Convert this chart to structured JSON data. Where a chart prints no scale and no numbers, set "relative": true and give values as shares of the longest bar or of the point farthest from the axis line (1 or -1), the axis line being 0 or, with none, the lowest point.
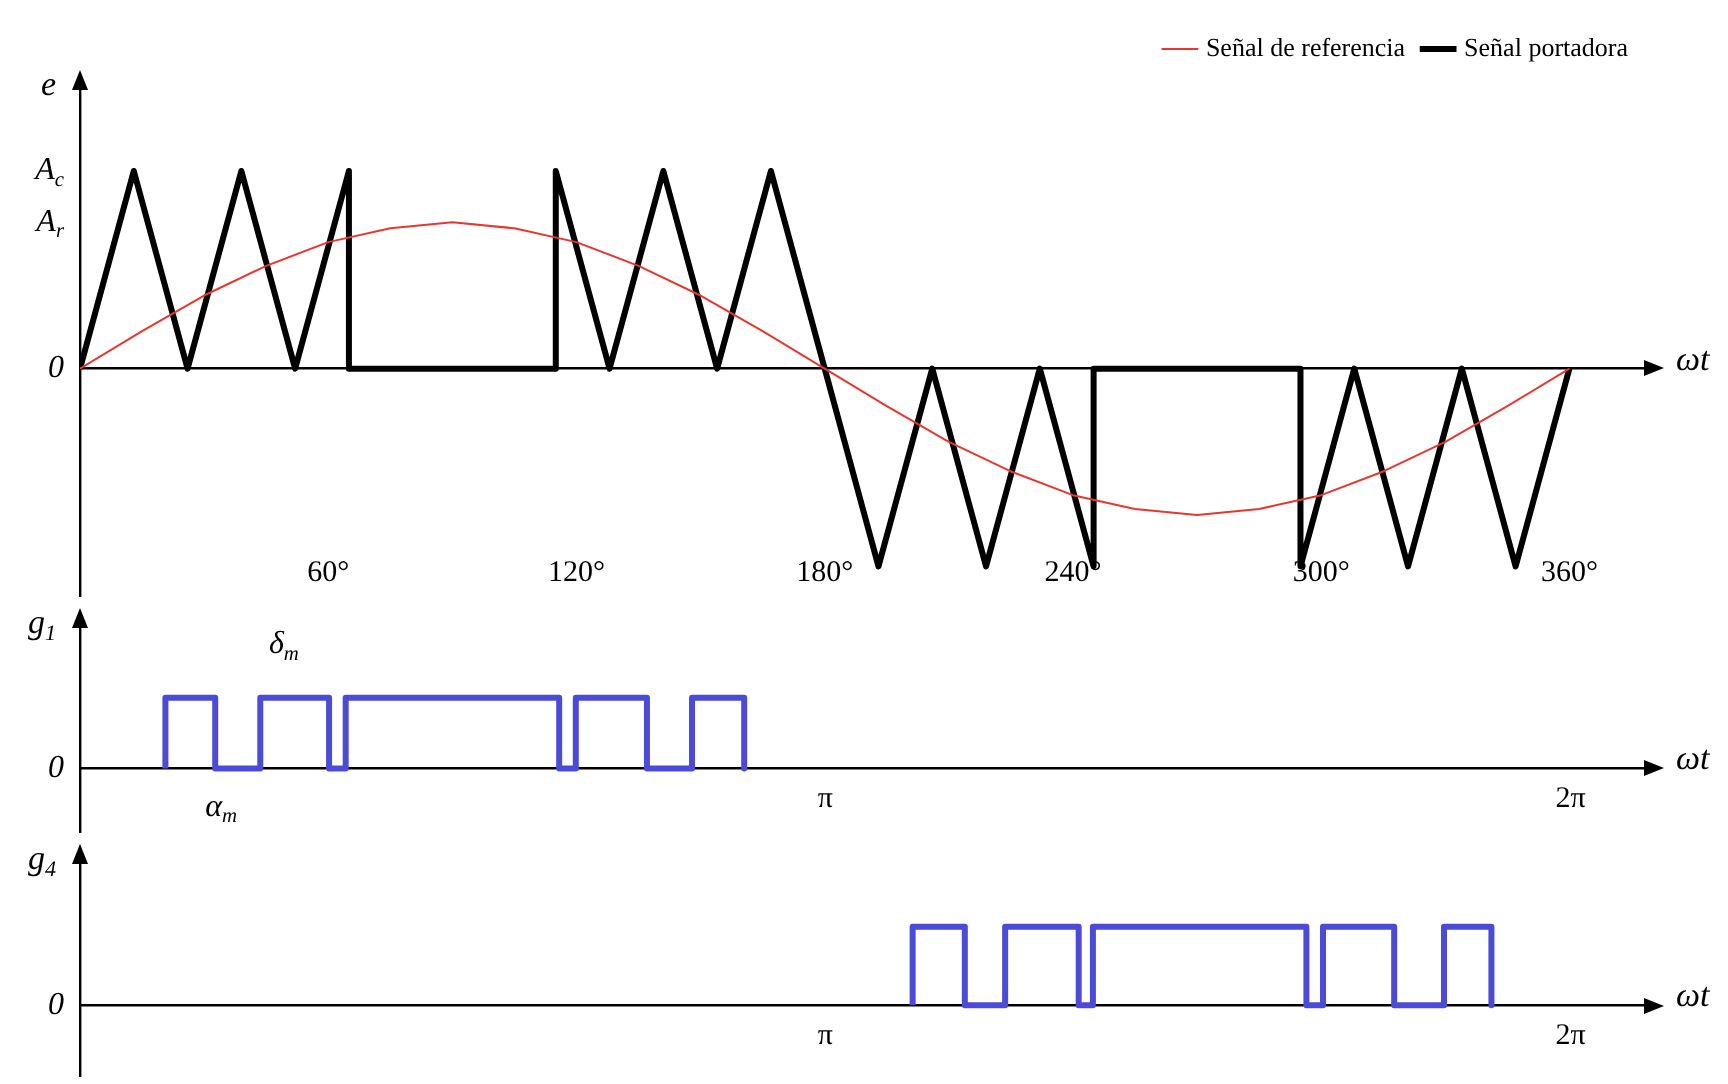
{
  "chart_data": [
    {
      "type": "line",
      "relative": true,
      "ylabel": "e",
      "xlabel": "ωt",
      "marker": "none",
      "legend": "top right",
      "xlim": [
        0,
        379
      ],
      "xticks": [
        {
          "value": 60,
          "label": "60°"
        },
        {
          "value": 120,
          "label": "120°"
        },
        {
          "value": 180,
          "label": "180°"
        },
        {
          "value": 240,
          "label": "240°"
        },
        {
          "value": 300,
          "label": "300°"
        },
        {
          "value": 360,
          "label": "360°"
        }
      ],
      "annotations": [
        "0",
        "A$_{c}$",
        "A$_{r}$"
      ],
      "series": [
        {
          "name": "Señal de referencia",
          "color": "#e8372f",
          "x": [
            0,
            15,
            30,
            45,
            60,
            75,
            90,
            105,
            120,
            135,
            150,
            165,
            180,
            195,
            210,
            225,
            240,
            255,
            270,
            285,
            300,
            315,
            330,
            345,
            360
          ],
          "values": [
            0,
            0.19,
            0.37,
            0.52,
            0.64,
            0.71,
            0.74,
            0.71,
            0.64,
            0.52,
            0.37,
            0.19,
            0,
            -0.19,
            -0.37,
            -0.52,
            -0.64,
            -0.71,
            -0.74,
            -0.71,
            -0.64,
            -0.52,
            -0.37,
            -0.19,
            0
          ]
        },
        {
          "name": "Señal portadora",
          "color": "#000000",
          "x": [
            0,
            13,
            26,
            39,
            52,
            65,
            65,
            115,
            115,
            128,
            141,
            154,
            167,
            180,
            193,
            206,
            219,
            232,
            245,
            245,
            295,
            295,
            308,
            321,
            334,
            347,
            360
          ],
          "values": [
            0,
            1,
            0,
            1,
            0,
            1,
            0,
            0,
            1,
            0,
            1,
            0,
            1,
            0,
            -1,
            0,
            -1,
            0,
            -1,
            0,
            0,
            -1,
            0,
            -1,
            0,
            -1,
            0
          ]
        }
      ]
    },
    {
      "type": "line",
      "relative": true,
      "ylabel": "g$_{1}$",
      "xlabel": "ωt",
      "marker": "none",
      "xlim": [
        0,
        6.61
      ],
      "xticks": [
        {
          "value": 3.1416,
          "label": "π"
        },
        {
          "value": 6.2832,
          "label": "2π"
        }
      ],
      "annotations": [
        "0",
        "α$_{m}$",
        "δ$_{m}$"
      ],
      "series": [
        {
          "color": "#4b4bd8",
          "x": [
            0.36,
            0.36,
            0.57,
            0.57,
            0.76,
            0.76,
            1.05,
            1.05,
            1.12,
            1.12,
            2.02,
            2.02,
            2.09,
            2.09,
            2.39,
            2.39,
            2.58,
            2.58,
            2.8,
            2.8
          ],
          "values": [
            0,
            1,
            1,
            0,
            0,
            1,
            1,
            0,
            0,
            1,
            1,
            0,
            0,
            1,
            1,
            0,
            0,
            1,
            1,
            0
          ]
        }
      ]
    },
    {
      "type": "line",
      "relative": true,
      "ylabel": "g$_{4}$",
      "xlabel": "ωt",
      "marker": "none",
      "xlim": [
        0,
        6.61
      ],
      "xticks": [
        {
          "value": 3.1416,
          "label": "π"
        },
        {
          "value": 6.2832,
          "label": "2π"
        }
      ],
      "annotations": [
        "0"
      ],
      "series": [
        {
          "color": "#4b4bd8",
          "x": [
            3.51,
            3.51,
            3.73,
            3.73,
            3.9,
            3.9,
            4.21,
            4.21,
            4.27,
            4.27,
            5.17,
            5.17,
            5.24,
            5.24,
            5.54,
            5.54,
            5.75,
            5.75,
            5.95,
            5.95
          ],
          "values": [
            0,
            1,
            1,
            0,
            0,
            1,
            1,
            0,
            0,
            1,
            1,
            0,
            0,
            1,
            1,
            0,
            0,
            1,
            1,
            0
          ]
        }
      ]
    }
  ]
}
